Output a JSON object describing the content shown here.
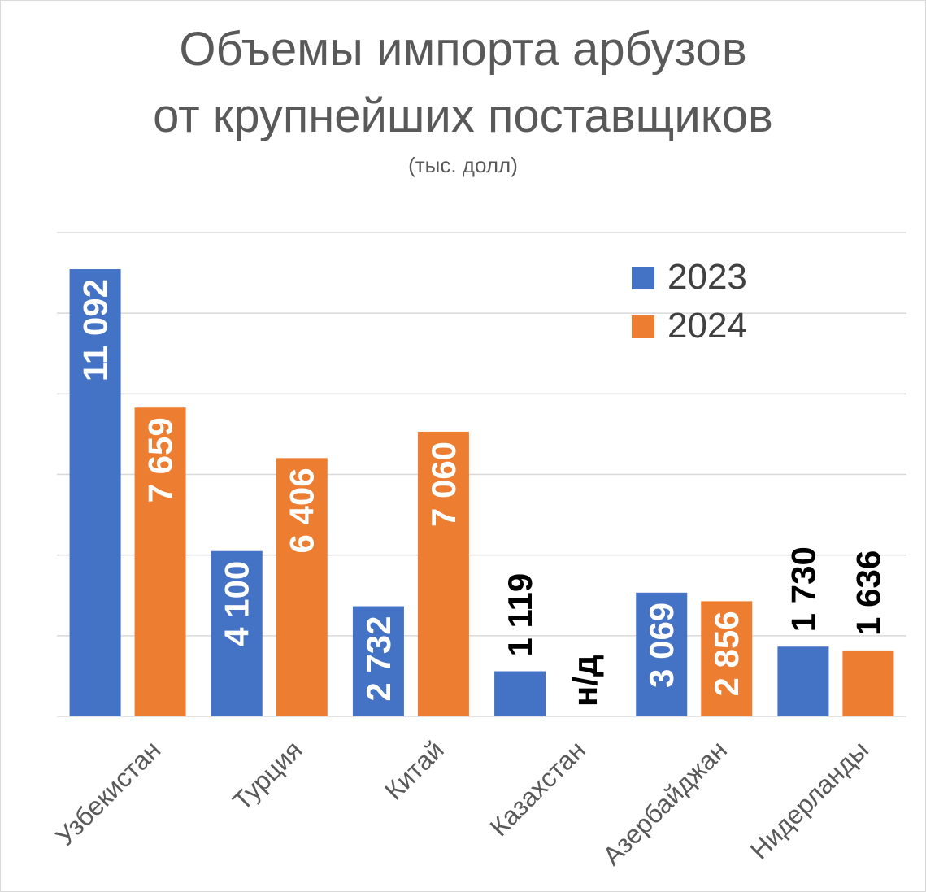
{
  "chart_data": {
    "type": "bar",
    "title": "Объемы импорта арбузов от крупнейших поставщиков",
    "title_lines": [
      "Объемы импорта арбузов",
      "от крупнейших поставщиков"
    ],
    "subtitle": "(тыс. долл)",
    "categories": [
      "Узбекистан",
      "Турция",
      "Китай",
      "Казахстан",
      "Азербайджан",
      "Нидерланды"
    ],
    "series": [
      {
        "name": "2023",
        "color": "#4472c4",
        "values": [
          11092,
          4100,
          2732,
          1119,
          3069,
          1730
        ],
        "labels": [
          "11 092",
          "4 100",
          "2 732",
          "1 119",
          "3 069",
          "1 730"
        ]
      },
      {
        "name": "2024",
        "color": "#ed7d31",
        "values": [
          7659,
          6406,
          7060,
          null,
          2856,
          1636
        ],
        "labels": [
          "7 659",
          "6 406",
          "7 060",
          "н/д",
          "2 856",
          "1 636"
        ]
      }
    ],
    "ylim": [
      0,
      12000
    ],
    "y_gridlines": true,
    "y_tick_labels_shown": false,
    "legend_position": "top-right",
    "colors": {
      "label_inside": "#ffffff",
      "label_outside": "#000000",
      "gridline": "#d9d9d9",
      "axis_text": "#595959"
    }
  }
}
